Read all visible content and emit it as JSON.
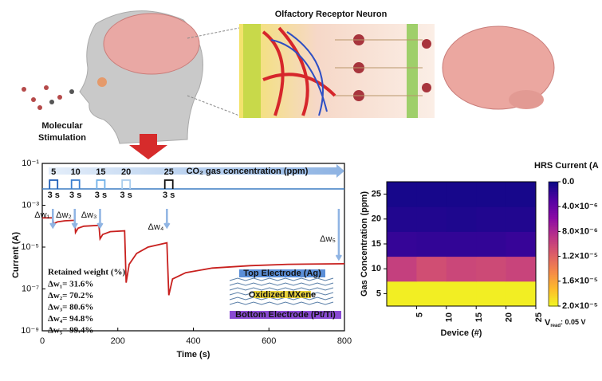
{
  "illustration": {
    "title": "Olfactory Receptor Neuron",
    "stimulus_label": [
      "Molecular",
      "Stimulation"
    ]
  },
  "chart_data": [
    {
      "type": "line",
      "x_label": "Time (s)",
      "y_label": "Current (A)",
      "log_y": true,
      "xlim": [
        0,
        800
      ],
      "xticks": [
        0,
        200,
        400,
        600,
        800
      ],
      "ylim": [
        1e-09,
        0.1
      ],
      "yticks": [
        {
          "value": 1e-09,
          "label": "10⁻⁹"
        },
        {
          "value": 1e-07,
          "label": "10⁻⁷"
        },
        {
          "value": 1e-05,
          "label": "10⁻⁵"
        },
        {
          "value": 0.001,
          "label": "10⁻³"
        },
        {
          "value": 0.1,
          "label": "10⁻¹"
        }
      ],
      "series": [
        {
          "color": "#c8201e",
          "x": [
            0,
            28,
            30,
            40,
            60,
            86,
            88,
            95,
            110,
            150,
            153,
            160,
            180,
            218,
            222,
            230,
            250,
            280,
            330,
            335,
            345,
            380,
            450,
            550,
            650,
            800
          ],
          "values": [
            0.00025,
            0.00025,
            0.00013,
            0.00016,
            0.00018,
            0.00019,
            5e-05,
            8e-05,
            0.0001,
            0.00011,
            2.5e-05,
            4e-05,
            5.5e-05,
            6e-05,
            2e-07,
            1.5e-06,
            5e-06,
            1e-05,
            1.6e-05,
            5e-08,
            3e-07,
            6e-07,
            1e-06,
            1.3e-06,
            1.5e-06,
            1.6e-06
          ]
        }
      ],
      "pulse_title": "CO₂ gas concentration (ppm)",
      "pulses": [
        {
          "label": "5",
          "x": 30,
          "duration_label": "3 s",
          "color": "#1f5fb8"
        },
        {
          "label": "10",
          "x": 88,
          "duration_label": "3 s",
          "color": "#3b7fd0"
        },
        {
          "label": "15",
          "x": 155,
          "duration_label": "3 s",
          "color": "#6fb0e8"
        },
        {
          "label": "20",
          "x": 222,
          "duration_label": "3 s",
          "color": "#a9cdee"
        },
        {
          "label": "25",
          "x": 335,
          "duration_label": "3 s",
          "color": "#111111"
        }
      ],
      "annotations": [
        {
          "label": "Δw₁",
          "x": 28
        },
        {
          "label": "Δw₂",
          "x": 86
        },
        {
          "label": "Δw₃",
          "x": 153
        },
        {
          "label": "Δw₄",
          "x": 330
        },
        {
          "label": "Δw₅",
          "x": 785
        }
      ],
      "retained_title": "Retained weight (%)",
      "retained": [
        "Δw₁= 31.6%",
        "Δw₂= 70.2%",
        "Δw₃= 80.6%",
        "Δw₄= 94.8%",
        "Δw₅= 99.4%"
      ],
      "inset": {
        "top": "Top Electrode (Ag)",
        "middle": "Oxidized MXene",
        "bottom": "Bottom Electrode (Pt/Ti)"
      }
    },
    {
      "type": "heatmap",
      "x_label": "Device (#)",
      "y_label": "Gas Concentration (ppm)",
      "colormap": "plasma",
      "xlim": [
        0,
        25
      ],
      "xticks": [
        5,
        10,
        15,
        20,
        25
      ],
      "ylim": [
        2.5,
        27.5
      ],
      "yticks": [
        5,
        10,
        15,
        20,
        25
      ],
      "x_bins": [
        0,
        5,
        10,
        15,
        20,
        25
      ],
      "y_bins": [
        2.5,
        7.5,
        12.5,
        17.5,
        22.5,
        27.5
      ],
      "z": [
        [
          1.95e-05,
          1.95e-05,
          1.95e-05,
          1.95e-05,
          1.95e-05
        ],
        [
          9.5e-06,
          1.05e-05,
          1e-05,
          1.02e-05,
          9.8e-06
        ],
        [
          1.6e-06,
          1.5e-06,
          1.5e-06,
          1.5e-06,
          1.7e-06
        ],
        [
          8e-07,
          8e-07,
          7e-07,
          8e-07,
          8e-07
        ],
        [
          4e-07,
          4e-07,
          4e-07,
          4e-07,
          4e-07
        ]
      ],
      "colorbar_title": "HRS Current (A",
      "clim": [
        0,
        2e-05
      ],
      "cticks": [
        {
          "value": 0,
          "label": "0.0"
        },
        {
          "value": 4e-06,
          "label": "4.0×10⁻⁶"
        },
        {
          "value": 8e-06,
          "label": "8.0×10⁻⁶"
        },
        {
          "value": 1.2e-05,
          "label": "1.2×10⁻⁵"
        },
        {
          "value": 1.6e-05,
          "label": "1.6×10⁻⁵"
        },
        {
          "value": 2e-05,
          "label": "2.0×10⁻⁵"
        }
      ],
      "v_read": {
        "symbol": "V",
        "sub": "read",
        "text": ": 0.05 V"
      }
    }
  ]
}
